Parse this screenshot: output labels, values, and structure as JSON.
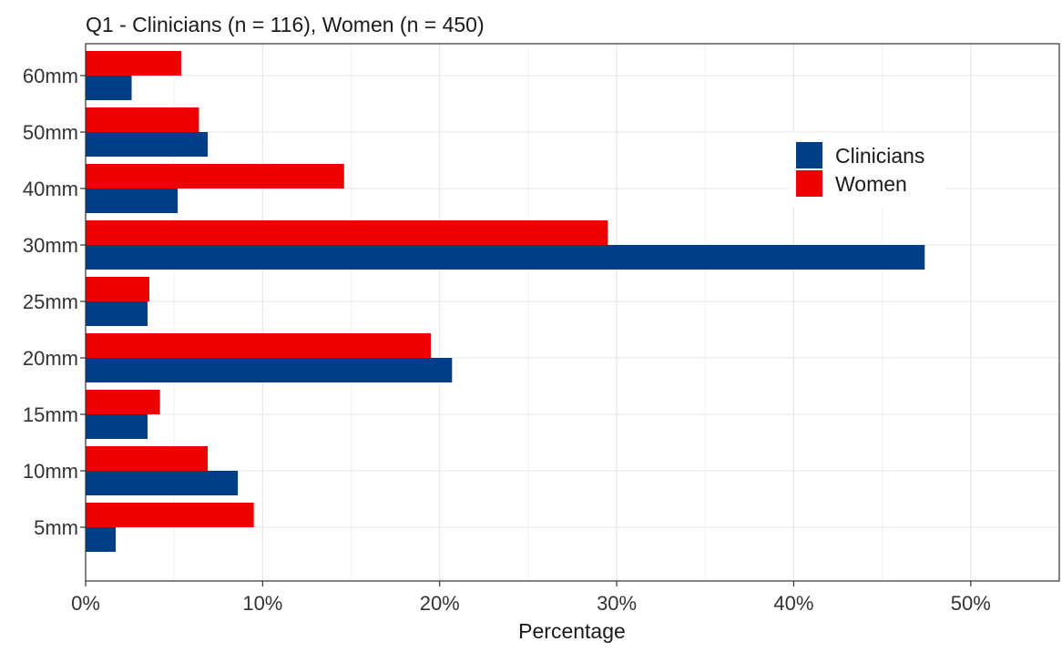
{
  "chart_data": {
    "type": "bar",
    "orientation": "horizontal",
    "title": "Q1 - Clinicians (n = 116), Women (n = 450)",
    "xlabel": "Percentage",
    "ylabel": "",
    "categories": [
      "60mm",
      "50mm",
      "40mm",
      "30mm",
      "25mm",
      "20mm",
      "15mm",
      "10mm",
      "5mm"
    ],
    "series": [
      {
        "name": "Women",
        "color": "#EE0000",
        "values": [
          5.4,
          6.4,
          14.6,
          29.5,
          3.6,
          19.5,
          4.2,
          6.9,
          9.5
        ]
      },
      {
        "name": "Clinicians",
        "color": "#003F87",
        "values": [
          2.6,
          6.9,
          5.2,
          47.4,
          3.5,
          20.7,
          3.5,
          8.6,
          1.7
        ]
      }
    ],
    "xlim": [
      0,
      55
    ],
    "xticks": [
      0,
      10,
      20,
      30,
      40,
      50
    ],
    "xtick_labels": [
      "0%",
      "10%",
      "20%",
      "30%",
      "40%",
      "50%"
    ],
    "grid": true,
    "legend": {
      "position": "top-right",
      "entries": [
        {
          "label": "Clinicians",
          "color": "#003F87"
        },
        {
          "label": "Women",
          "color": "#EE0000"
        }
      ]
    }
  }
}
